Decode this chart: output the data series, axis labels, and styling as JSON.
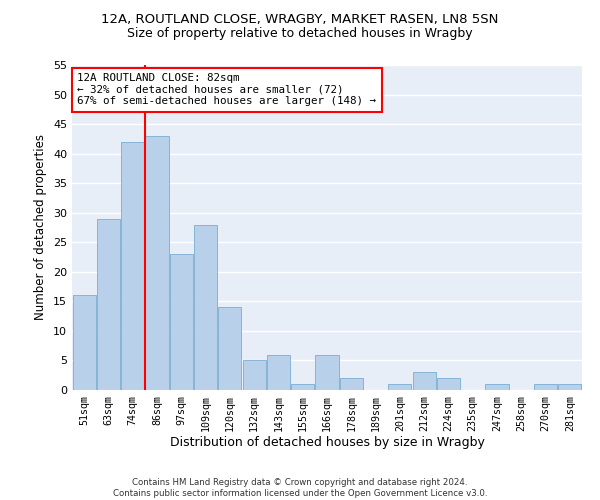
{
  "title": "12A, ROUTLAND CLOSE, WRAGBY, MARKET RASEN, LN8 5SN",
  "subtitle": "Size of property relative to detached houses in Wragby",
  "xlabel": "Distribution of detached houses by size in Wragby",
  "ylabel": "Number of detached properties",
  "categories": [
    "51sqm",
    "63sqm",
    "74sqm",
    "86sqm",
    "97sqm",
    "109sqm",
    "120sqm",
    "132sqm",
    "143sqm",
    "155sqm",
    "166sqm",
    "178sqm",
    "189sqm",
    "201sqm",
    "212sqm",
    "224sqm",
    "235sqm",
    "247sqm",
    "258sqm",
    "270sqm",
    "281sqm"
  ],
  "values": [
    16,
    29,
    42,
    43,
    23,
    28,
    14,
    5,
    6,
    1,
    6,
    2,
    0,
    1,
    3,
    2,
    0,
    1,
    0,
    1,
    1
  ],
  "bar_color": "#b8d0ea",
  "bar_edge_color": "#7aadd4",
  "vline_color": "red",
  "annotation_text": "12A ROUTLAND CLOSE: 82sqm\n← 32% of detached houses are smaller (72)\n67% of semi-detached houses are larger (148) →",
  "annotation_box_color": "white",
  "annotation_box_edge": "red",
  "ylim": [
    0,
    55
  ],
  "yticks": [
    0,
    5,
    10,
    15,
    20,
    25,
    30,
    35,
    40,
    45,
    50,
    55
  ],
  "bg_color": "#e8eef8",
  "grid_color": "white",
  "footer": "Contains HM Land Registry data © Crown copyright and database right 2024.\nContains public sector information licensed under the Open Government Licence v3.0.",
  "title_fontsize": 9.5,
  "subtitle_fontsize": 9,
  "ylabel_fontsize": 8.5,
  "xlabel_fontsize": 9
}
